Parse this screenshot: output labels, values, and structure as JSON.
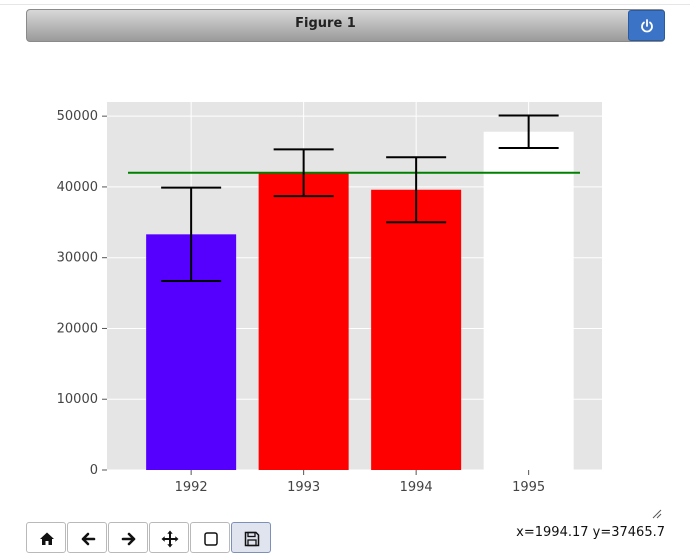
{
  "window": {
    "title": "Figure 1"
  },
  "status": {
    "coords": "x=1994.17 y=37465.7"
  },
  "toolbar": [
    {
      "name": "home-button",
      "icon": "home-icon"
    },
    {
      "name": "back-button",
      "icon": "arrow-left-icon"
    },
    {
      "name": "forward-button",
      "icon": "arrow-right-icon"
    },
    {
      "name": "pan-button",
      "icon": "move-icon"
    },
    {
      "name": "zoom-button",
      "icon": "square-icon"
    },
    {
      "name": "save-button",
      "icon": "floppy-disk-icon"
    }
  ],
  "chart_data": {
    "type": "bar",
    "categories": [
      "1992",
      "1993",
      "1994",
      "1995"
    ],
    "values": [
      33300,
      42000,
      39600,
      47800
    ],
    "errors": [
      6600,
      3300,
      4600,
      2300
    ],
    "colors": [
      "#5500ff",
      "#ff0000",
      "#ff0000",
      "#ffffff"
    ],
    "reference_line": {
      "value": 42000,
      "color": "#008000"
    },
    "ylim": [
      0,
      52000
    ],
    "yticks": [
      0,
      10000,
      20000,
      30000,
      40000,
      50000
    ],
    "grid": true,
    "background": "#e5e5e5"
  }
}
